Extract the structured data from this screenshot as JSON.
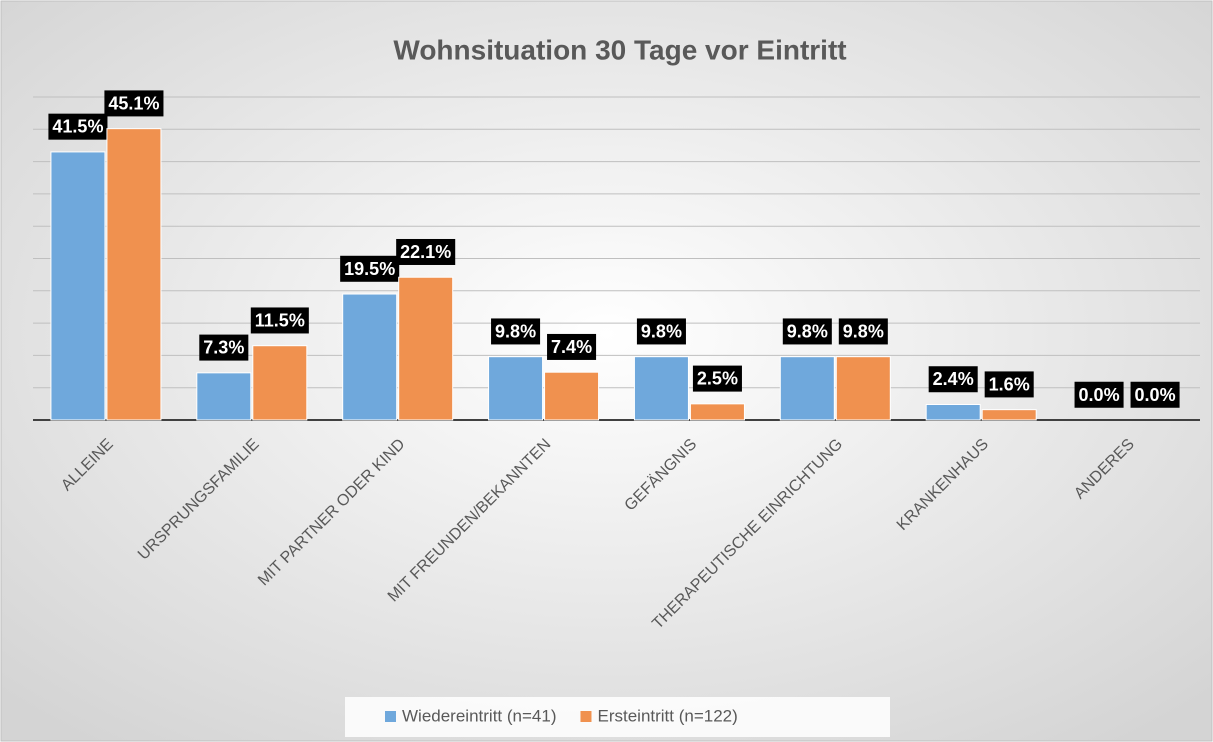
{
  "chart_data": {
    "type": "bar",
    "title": "Wohnsituation 30 Tage vor Eintritt",
    "categories": [
      "ALLEINE",
      "URSPRUNGSFAMILIE",
      "MIT PARTNER ODER KIND",
      "MIT FREUNDEN/BEKANNTEN",
      "GEFÄNGNIS",
      "THERAPEUTISCHE EINRICHTUNG",
      "KRANKENHAUS",
      "ANDERES"
    ],
    "series": [
      {
        "name": "Wiedereintritt (n=41)",
        "color": "#6fa8dc",
        "values": [
          41.5,
          7.3,
          19.5,
          9.8,
          9.8,
          9.8,
          2.4,
          0.0
        ],
        "value_labels": [
          "41.5%",
          "7.3%",
          "19.5%",
          "9.8%",
          "9.8%",
          "9.8%",
          "2.4%",
          "0.0%"
        ]
      },
      {
        "name": "Ersteintritt (n=122)",
        "color": "#f0914f",
        "values": [
          45.1,
          11.5,
          22.1,
          7.4,
          2.5,
          9.8,
          1.6,
          0.0
        ],
        "value_labels": [
          "45.1%",
          "11.5%",
          "22.1%",
          "7.4%",
          "2.5%",
          "9.8%",
          "1.6%",
          "0.0%"
        ]
      }
    ],
    "ylim": [
      0,
      50
    ],
    "yticks": [
      0,
      5,
      10,
      15,
      20,
      25,
      30,
      35,
      40,
      45,
      50
    ],
    "grid": true,
    "legend": "bottom"
  }
}
